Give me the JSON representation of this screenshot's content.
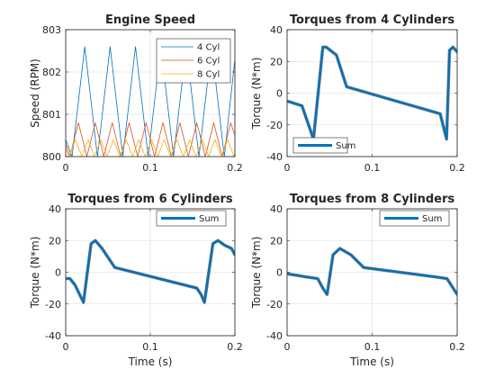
{
  "chart_data": [
    {
      "type": "line",
      "title": "Engine Speed",
      "xlabel": "",
      "ylabel": "Speed (RPM)",
      "xlim": [
        0,
        0.2
      ],
      "ylim": [
        800,
        803
      ],
      "xticks": [
        0,
        0.1,
        0.2
      ],
      "yticks": [
        800,
        801,
        802,
        803
      ],
      "xtick_labels": [
        "0",
        "0.1",
        "0.2"
      ],
      "ytick_labels": [
        "800",
        "801",
        "802",
        "803"
      ],
      "grid": true,
      "legend_position": "top-right",
      "series": [
        {
          "name": "4 Cyl",
          "color": "#0072BD",
          "linewidth": 0.8,
          "x": [
            0,
            0.0075,
            0.0225,
            0.0375,
            0.0525,
            0.0675,
            0.0825,
            0.0975,
            0.1125,
            0.1275,
            0.1425,
            0.1575,
            0.1725,
            0.1875,
            0.2
          ],
          "y": [
            800.4,
            800,
            802.6,
            800,
            802.6,
            800,
            802.6,
            800,
            802.6,
            800,
            802.6,
            800,
            802.6,
            800,
            802.3
          ]
        },
        {
          "name": "6 Cyl",
          "color": "#D95319",
          "linewidth": 0.8,
          "x": [
            0,
            0.005,
            0.015,
            0.025,
            0.035,
            0.045,
            0.055,
            0.065,
            0.075,
            0.085,
            0.095,
            0.105,
            0.115,
            0.125,
            0.135,
            0.145,
            0.155,
            0.165,
            0.175,
            0.185,
            0.195,
            0.2
          ],
          "y": [
            800.3,
            800,
            800.8,
            800,
            800.8,
            800,
            800.8,
            800,
            800.8,
            800,
            800.8,
            800,
            800.8,
            800,
            800.8,
            800,
            800.8,
            800,
            800.8,
            800,
            800.8,
            800.5
          ]
        },
        {
          "name": "8 Cyl",
          "color": "#EDB120",
          "linewidth": 0.8,
          "x": [
            0,
            0.004,
            0.0115,
            0.019,
            0.0265,
            0.034,
            0.0415,
            0.049,
            0.0565,
            0.064,
            0.0715,
            0.079,
            0.0865,
            0.094,
            0.1015,
            0.109,
            0.1165,
            0.124,
            0.1315,
            0.139,
            0.1465,
            0.154,
            0.1615,
            0.169,
            0.1765,
            0.184,
            0.1915,
            0.199,
            0.2
          ],
          "y": [
            800.2,
            800,
            800.4,
            800,
            800.4,
            800,
            800.4,
            800,
            800.4,
            800,
            800.4,
            800,
            800.4,
            800,
            800.4,
            800,
            800.4,
            800,
            800.4,
            800,
            800.4,
            800,
            800.4,
            800,
            800.4,
            800,
            800.4,
            800,
            800.1
          ]
        }
      ]
    },
    {
      "type": "line",
      "title": "Torques from 4 Cylinders",
      "xlabel": "",
      "ylabel": "Torque (N*m)",
      "xlim": [
        0,
        0.2
      ],
      "ylim": [
        -40,
        40
      ],
      "xticks": [
        0,
        0.1,
        0.2
      ],
      "yticks": [
        -40,
        -20,
        0,
        20,
        40
      ],
      "xtick_labels": [
        "0",
        "0.1",
        "0.2"
      ],
      "ytick_labels": [
        "-40",
        "-20",
        "0",
        "20",
        "40"
      ],
      "grid": true,
      "legend_position": "bottom-left",
      "series": [
        {
          "name": "Sum",
          "color": "#0072BD",
          "linewidth": 3.5,
          "x": [
            0,
            0.0175,
            0.031,
            0.042,
            0.046,
            0.058,
            0.07,
            0.18,
            0.1875,
            0.191,
            0.195,
            0.2
          ],
          "y": [
            -5,
            -8,
            -29,
            29,
            29,
            24,
            4,
            -13,
            -29,
            27,
            29,
            26
          ]
        }
      ]
    },
    {
      "type": "line",
      "title": "Torques from 6 Cylinders",
      "xlabel": "Time (s)",
      "ylabel": "Torque (N*m)",
      "xlim": [
        0,
        0.2
      ],
      "ylim": [
        -40,
        40
      ],
      "xticks": [
        0,
        0.1,
        0.2
      ],
      "yticks": [
        -40,
        -20,
        0,
        20,
        40
      ],
      "xtick_labels": [
        "0",
        "0.1",
        "0.2"
      ],
      "ytick_labels": [
        "-40",
        "-20",
        "0",
        "20",
        "40"
      ],
      "grid": true,
      "legend_position": "top-right",
      "series": [
        {
          "name": "Sum",
          "color": "#0072BD",
          "linewidth": 3.5,
          "x": [
            0,
            0.005,
            0.011,
            0.021,
            0.03,
            0.035,
            0.043,
            0.058,
            0.155,
            0.16,
            0.164,
            0.174,
            0.18,
            0.188,
            0.196,
            0.2
          ],
          "y": [
            -4,
            -4,
            -8,
            -19,
            18,
            20,
            15,
            3,
            -10,
            -14,
            -19,
            18,
            20,
            17,
            15,
            11
          ]
        }
      ]
    },
    {
      "type": "line",
      "title": "Torques from 8 Cylinders",
      "xlabel": "Time (s)",
      "ylabel": "Torque (N*m)",
      "xlim": [
        0,
        0.2
      ],
      "ylim": [
        -40,
        40
      ],
      "xticks": [
        0,
        0.1,
        0.2
      ],
      "yticks": [
        -40,
        -20,
        0,
        20,
        40
      ],
      "xtick_labels": [
        "0",
        "0.1",
        "0.2"
      ],
      "ytick_labels": [
        "-40",
        "-20",
        "0",
        "20",
        "40"
      ],
      "grid": true,
      "legend_position": "top-right",
      "series": [
        {
          "name": "Sum",
          "color": "#0072BD",
          "linewidth": 3.5,
          "x": [
            0,
            0.012,
            0.023,
            0.036,
            0.042,
            0.047,
            0.054,
            0.062,
            0.075,
            0.09,
            0.175,
            0.188,
            0.2
          ],
          "y": [
            -1,
            -2,
            -3,
            -4,
            -10,
            -14,
            11,
            15,
            11,
            3,
            -3,
            -4,
            -14
          ]
        }
      ]
    }
  ]
}
